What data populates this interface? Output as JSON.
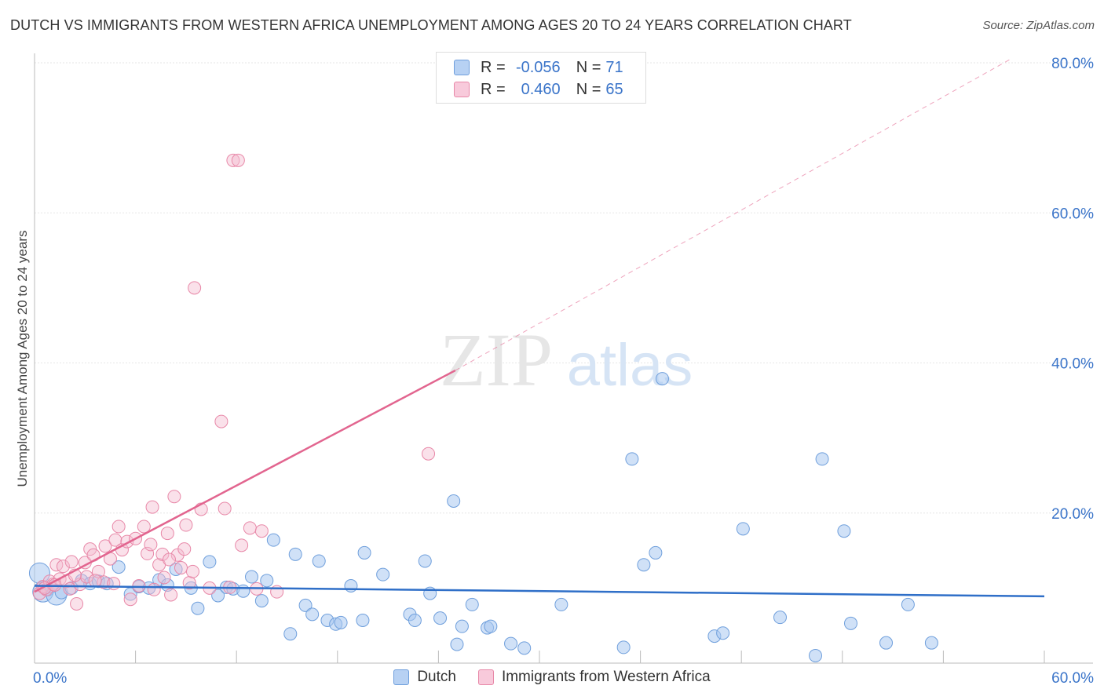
{
  "title": "DUTCH VS IMMIGRANTS FROM WESTERN AFRICA UNEMPLOYMENT AMONG AGES 20 TO 24 YEARS CORRELATION CHART",
  "source": "Source: ZipAtlas.com",
  "watermark": {
    "zip": "ZIP",
    "atlas": "atlas"
  },
  "stats": {
    "dutch": {
      "r_label": "R =",
      "r_value": "-0.056",
      "n_label": "N =",
      "n_value": "71"
    },
    "immigrants": {
      "r_label": "R =",
      "r_value": "0.460",
      "n_label": "N =",
      "n_value": "65"
    }
  },
  "colors": {
    "dutch_fill": "#a9c8f0",
    "dutch_stroke": "#6f9fdc",
    "dutch_line": "#2f6fc8",
    "imm_fill": "#f5bcd0",
    "imm_stroke": "#e888a8",
    "imm_line": "#e2658f",
    "axis_label": "#3a74c9",
    "grid": "#e6e6e6"
  },
  "legend": {
    "dutch": "Dutch",
    "immigrants": "Immigrants from Western Africa"
  },
  "chart_data": {
    "type": "scatter",
    "title": "DUTCH VS IMMIGRANTS FROM WESTERN AFRICA UNEMPLOYMENT AMONG AGES 20 TO 24 YEARS CORRELATION CHART",
    "xlabel": "",
    "ylabel": "Unemployment Among Ages 20 to 24 years",
    "xlim": [
      0,
      60
    ],
    "ylim": [
      0,
      80
    ],
    "x_tick_labels": [
      "0.0%",
      "60.0%"
    ],
    "y_ticks": [
      20,
      40,
      60,
      80
    ],
    "y_tick_labels": [
      "20.0%",
      "40.0%",
      "60.0%",
      "80.0%"
    ],
    "grid": true,
    "legend_position": "bottom",
    "series": [
      {
        "name": "Dutch",
        "trend": {
          "x": [
            0,
            60
          ],
          "y": [
            10.3,
            8.9
          ]
        },
        "points": [
          [
            0.3,
            12.0
          ],
          [
            0.5,
            9.5
          ],
          [
            0.8,
            9.8
          ],
          [
            1.0,
            10.2
          ],
          [
            1.3,
            9.1
          ],
          [
            1.6,
            9.4
          ],
          [
            2.2,
            10.0
          ],
          [
            2.8,
            11.0
          ],
          [
            3.3,
            10.6
          ],
          [
            3.8,
            10.9
          ],
          [
            4.3,
            10.6
          ],
          [
            5.0,
            12.8
          ],
          [
            5.7,
            9.2
          ],
          [
            6.2,
            10.2
          ],
          [
            6.8,
            10.0
          ],
          [
            7.4,
            11.1
          ],
          [
            7.9,
            10.4
          ],
          [
            8.4,
            12.5
          ],
          [
            9.3,
            10.0
          ],
          [
            9.7,
            7.3
          ],
          [
            10.4,
            13.5
          ],
          [
            10.9,
            9.0
          ],
          [
            11.4,
            10.1
          ],
          [
            11.8,
            9.9
          ],
          [
            12.4,
            9.6
          ],
          [
            12.9,
            11.5
          ],
          [
            13.5,
            8.3
          ],
          [
            13.8,
            11.0
          ],
          [
            14.2,
            16.4
          ],
          [
            15.2,
            3.9
          ],
          [
            15.5,
            14.5
          ],
          [
            16.1,
            7.7
          ],
          [
            16.5,
            6.5
          ],
          [
            16.9,
            13.6
          ],
          [
            17.4,
            5.7
          ],
          [
            17.9,
            5.2
          ],
          [
            18.2,
            5.4
          ],
          [
            18.8,
            10.3
          ],
          [
            19.5,
            5.7
          ],
          [
            19.6,
            14.7
          ],
          [
            20.7,
            11.8
          ],
          [
            22.3,
            6.5
          ],
          [
            22.6,
            5.7
          ],
          [
            23.2,
            13.6
          ],
          [
            23.5,
            9.3
          ],
          [
            24.1,
            6.0
          ],
          [
            24.9,
            21.6
          ],
          [
            25.1,
            2.5
          ],
          [
            25.4,
            4.9
          ],
          [
            26.0,
            7.8
          ],
          [
            26.9,
            4.7
          ],
          [
            27.1,
            4.9
          ],
          [
            28.3,
            2.6
          ],
          [
            29.1,
            2.0
          ],
          [
            31.3,
            7.8
          ],
          [
            35.0,
            2.1
          ],
          [
            35.5,
            27.2
          ],
          [
            36.2,
            13.1
          ],
          [
            36.9,
            14.7
          ],
          [
            37.3,
            37.9
          ],
          [
            40.4,
            3.6
          ],
          [
            40.9,
            4.0
          ],
          [
            42.1,
            17.9
          ],
          [
            44.3,
            6.1
          ],
          [
            46.4,
            1.0
          ],
          [
            46.8,
            27.2
          ],
          [
            48.1,
            17.6
          ],
          [
            48.5,
            5.3
          ],
          [
            50.6,
            2.7
          ],
          [
            51.9,
            7.8
          ],
          [
            53.3,
            2.7
          ]
        ]
      },
      {
        "name": "Immigrants from Western Africa",
        "trend": {
          "x": [
            0,
            25
          ],
          "y": [
            9.5,
            39.0
          ]
        },
        "trend_extension": {
          "x": [
            25,
            58
          ],
          "y": [
            39.0,
            80.5
          ]
        },
        "points": [
          [
            0.3,
            9.3
          ],
          [
            0.5,
            10.2
          ],
          [
            0.7,
            9.8
          ],
          [
            0.9,
            10.9
          ],
          [
            1.1,
            10.5
          ],
          [
            1.3,
            13.1
          ],
          [
            1.5,
            11.2
          ],
          [
            1.7,
            12.9
          ],
          [
            1.9,
            10.9
          ],
          [
            2.1,
            9.9
          ],
          [
            2.2,
            13.5
          ],
          [
            2.5,
            7.9
          ],
          [
            2.7,
            10.5
          ],
          [
            3.0,
            13.4
          ],
          [
            3.1,
            11.5
          ],
          [
            3.3,
            15.2
          ],
          [
            3.5,
            14.4
          ],
          [
            3.8,
            12.2
          ],
          [
            4.1,
            10.8
          ],
          [
            4.2,
            15.6
          ],
          [
            4.5,
            13.9
          ],
          [
            4.7,
            10.6
          ],
          [
            4.8,
            16.4
          ],
          [
            5.0,
            18.2
          ],
          [
            5.2,
            15.1
          ],
          [
            5.5,
            16.2
          ],
          [
            5.7,
            8.5
          ],
          [
            6.0,
            16.6
          ],
          [
            6.2,
            10.3
          ],
          [
            6.5,
            18.2
          ],
          [
            6.7,
            14.6
          ],
          [
            7.0,
            20.8
          ],
          [
            7.1,
            9.8
          ],
          [
            7.4,
            13.1
          ],
          [
            7.6,
            14.5
          ],
          [
            7.7,
            11.4
          ],
          [
            7.9,
            17.3
          ],
          [
            8.1,
            9.1
          ],
          [
            8.3,
            22.2
          ],
          [
            8.5,
            14.4
          ],
          [
            8.7,
            12.7
          ],
          [
            8.9,
            15.2
          ],
          [
            9.0,
            18.4
          ],
          [
            9.2,
            10.7
          ],
          [
            9.4,
            12.2
          ],
          [
            9.5,
            50.0
          ],
          [
            9.9,
            20.5
          ],
          [
            10.4,
            10.0
          ],
          [
            11.1,
            32.2
          ],
          [
            11.3,
            20.6
          ],
          [
            11.6,
            10.1
          ],
          [
            11.8,
            67.0
          ],
          [
            12.1,
            67.0
          ],
          [
            12.3,
            15.7
          ],
          [
            12.8,
            18.0
          ],
          [
            13.2,
            9.9
          ],
          [
            13.5,
            17.6
          ],
          [
            14.4,
            9.5
          ],
          [
            23.4,
            27.9
          ],
          [
            0.6,
            10.0
          ],
          [
            1.2,
            10.4
          ],
          [
            2.4,
            11.7
          ],
          [
            3.6,
            11.0
          ],
          [
            6.9,
            15.8
          ],
          [
            8.0,
            13.8
          ]
        ]
      }
    ]
  },
  "point_size_hints": {
    "large_dutch": [
      0,
      1,
      4
    ]
  }
}
